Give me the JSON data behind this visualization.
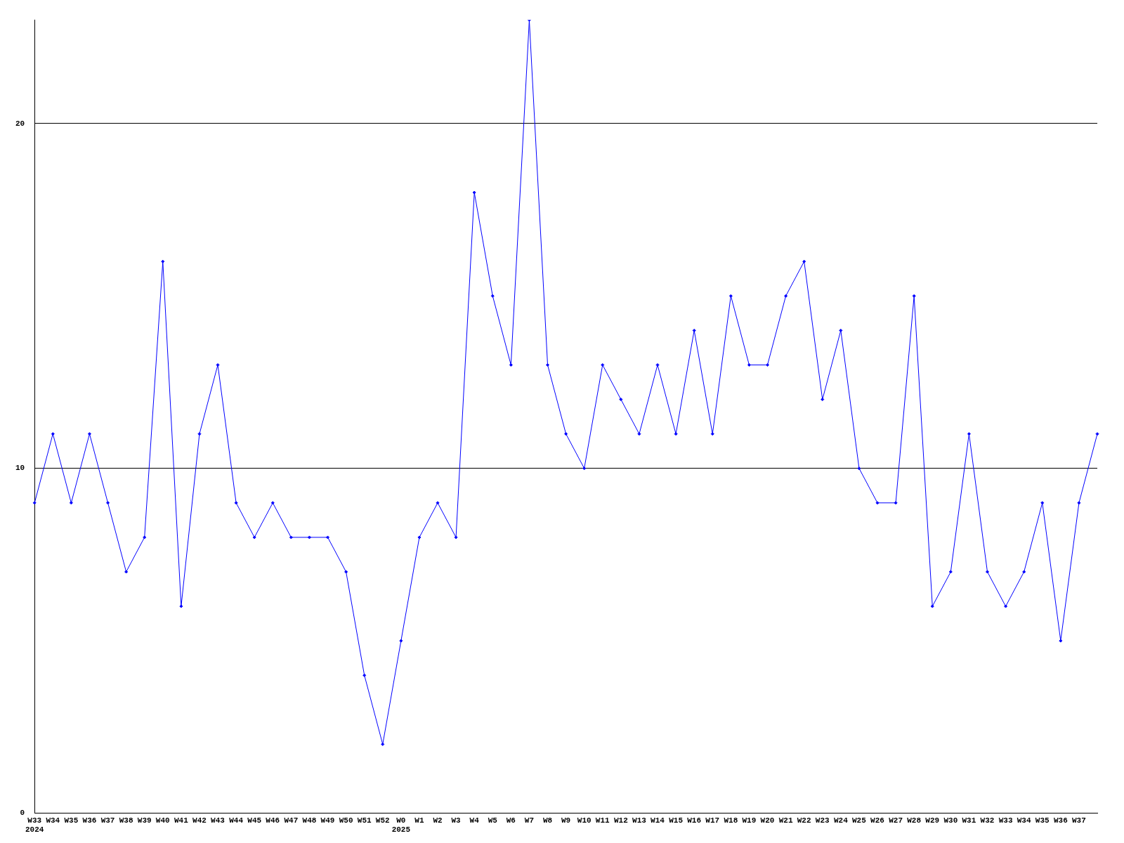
{
  "chart_data": {
    "type": "line",
    "categories": [
      "W33\n2024",
      "W34",
      "W35",
      "W36",
      "W37",
      "W38",
      "W39",
      "W40",
      "W41",
      "W42",
      "W43",
      "W44",
      "W45",
      "W46",
      "W47",
      "W48",
      "W49",
      "W50",
      "W51",
      "W52",
      "W0\n2025",
      "W1",
      "W2",
      "W3",
      "W4",
      "W5",
      "W6",
      "W7",
      "W8",
      "W9",
      "W10",
      "W11",
      "W12",
      "W13",
      "W14",
      "W15",
      "W16",
      "W17",
      "W18",
      "W19",
      "W20",
      "W21",
      "W22",
      "W23",
      "W24",
      "W25",
      "W26",
      "W27",
      "W28",
      "W29",
      "W30",
      "W31",
      "W32",
      "W33",
      "W34",
      "W35",
      "W36",
      "W37",
      null
    ],
    "series": [
      {
        "color": "#0000ff",
        "values": [
          9,
          11,
          9,
          11,
          9,
          7,
          8,
          16,
          6,
          11,
          13,
          9,
          8,
          9,
          8,
          8,
          8,
          7,
          4,
          2,
          5,
          8,
          9,
          8,
          18,
          15,
          13,
          23,
          13,
          11,
          10,
          13,
          12,
          11,
          13,
          11,
          14,
          11,
          15,
          13,
          13,
          15,
          16,
          12,
          14,
          10,
          9,
          9,
          15,
          6,
          7,
          11,
          7,
          6,
          7,
          9,
          5,
          9,
          11
        ]
      }
    ],
    "ylim": [
      0,
      23
    ],
    "yticks": [
      0,
      10,
      20
    ],
    "grid": "y",
    "legend": false,
    "marker": "diamond",
    "line_style": "solid"
  }
}
